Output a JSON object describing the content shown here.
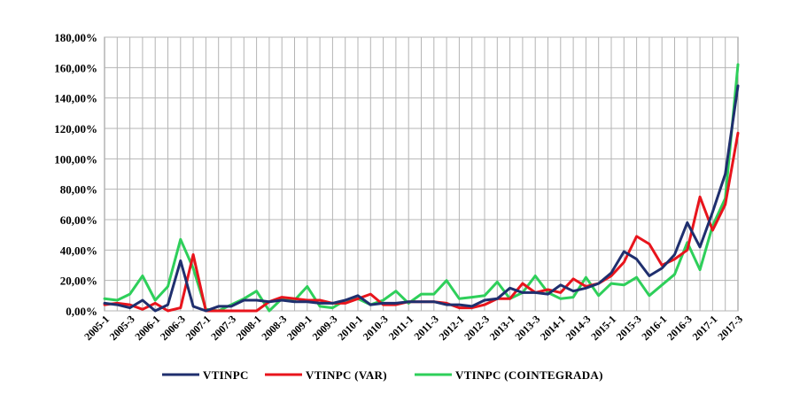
{
  "chart_data": {
    "type": "line",
    "title": "",
    "xlabel": "",
    "ylabel": "",
    "ylim": [
      0,
      180
    ],
    "y_ticks": [
      "0,00%",
      "20,00%",
      "40,00%",
      "60,00%",
      "80,00%",
      "100,00%",
      "120,00%",
      "140,00%",
      "160,00%",
      "180,00%"
    ],
    "x_tick_labels": [
      "2005-1",
      "2005-3",
      "2006-1",
      "2006-3",
      "2007-1",
      "2007-3",
      "2008-1",
      "2008-3",
      "2009-1",
      "2009-3",
      "2010-1",
      "2010-3",
      "2011-1",
      "2011-3",
      "2012-1",
      "2012-3",
      "2013-1",
      "2013-3",
      "2014-1",
      "2014-3",
      "2015-1",
      "2015-3",
      "2016-1",
      "2016-3",
      "2017-1",
      "2017-3"
    ],
    "grid": true,
    "legend_position": "bottom",
    "series": [
      {
        "name": "VTINPC",
        "color": "#1f2f6e",
        "values": [
          5,
          4,
          2,
          7,
          0,
          4,
          33,
          3,
          0,
          3,
          3,
          7,
          7,
          6,
          7,
          6,
          6,
          5,
          5,
          7,
          10,
          4,
          5,
          5,
          6,
          6,
          6,
          4,
          4,
          3,
          7,
          8,
          15,
          12,
          12,
          11,
          17,
          13,
          15,
          18,
          25,
          39,
          34,
          23,
          28,
          37,
          58,
          42,
          65,
          90,
          148
        ]
      },
      {
        "name": "VTINPC (VAR)",
        "color": "#e8141c",
        "values": [
          4,
          5,
          4,
          1,
          5,
          0,
          2,
          37,
          0,
          0,
          0,
          0,
          0,
          6,
          9,
          8,
          7,
          7,
          5,
          5,
          8,
          11,
          4,
          4,
          6,
          6,
          6,
          5,
          2,
          2,
          4,
          8,
          8,
          18,
          12,
          14,
          12,
          21,
          16,
          18,
          23,
          32,
          49,
          44,
          30,
          34,
          40,
          75,
          53,
          70,
          117
        ]
      },
      {
        "name": "VTINPC (COINTEGRADA)",
        "color": "#2ecf5a",
        "values": [
          8,
          7,
          11,
          23,
          7,
          16,
          47,
          28,
          1,
          0,
          4,
          8,
          13,
          0,
          8,
          7,
          16,
          3,
          2,
          7,
          8,
          4,
          7,
          13,
          5,
          11,
          11,
          20,
          8,
          9,
          10,
          19,
          8,
          12,
          23,
          12,
          8,
          9,
          22,
          10,
          18,
          17,
          22,
          10,
          17,
          24,
          45,
          27,
          56,
          74,
          162
        ]
      }
    ]
  }
}
